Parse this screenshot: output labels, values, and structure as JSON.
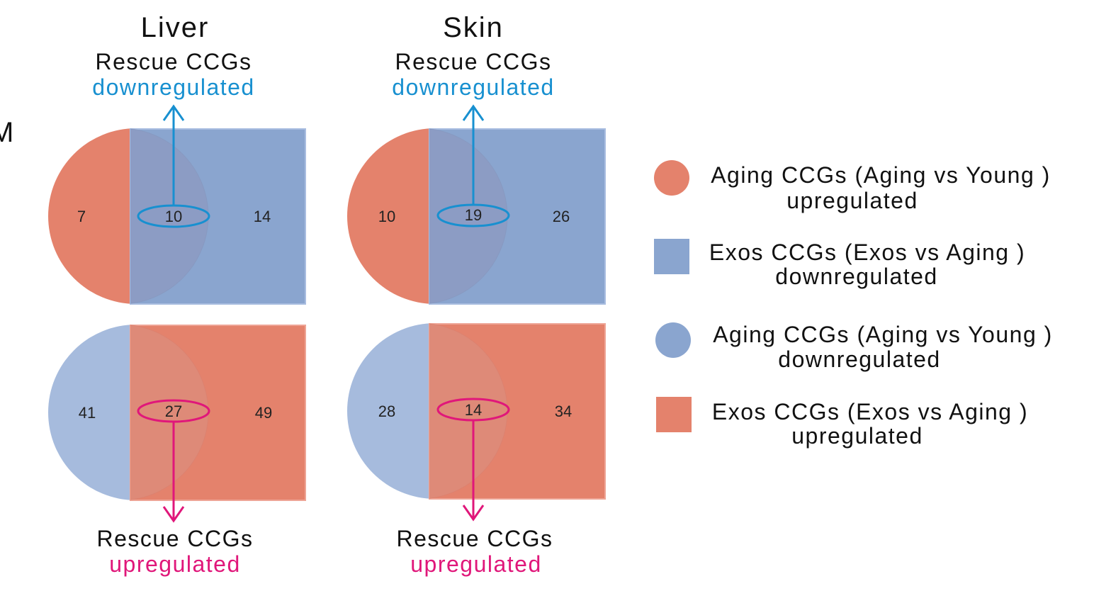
{
  "panel_letter": "M",
  "columns": [
    {
      "title": "Liver",
      "top_caption": {
        "line1": "Rescue CCGs",
        "line2": "downregulated"
      },
      "bottom_caption": {
        "line1": "Rescue CCGs",
        "line2": "upregulated"
      },
      "top_diagram": {
        "left": "7",
        "overlap": "10",
        "right": "14"
      },
      "bottom_diagram": {
        "left": "41",
        "overlap": "27",
        "right": "49"
      }
    },
    {
      "title": "Skin",
      "top_caption": {
        "line1": "Rescue CCGs",
        "line2": "downregulated"
      },
      "bottom_caption": {
        "line1": "Rescue CCGs",
        "line2": "upregulated"
      },
      "top_diagram": {
        "left": "10",
        "overlap": "19",
        "right": "26"
      },
      "bottom_diagram": {
        "left": "28",
        "overlap": "14",
        "right": "34"
      }
    }
  ],
  "legend": [
    {
      "shape": "circle",
      "color": "#e4826c",
      "line1": "Aging CCGs (Aging vs Young )",
      "line2": "upregulated"
    },
    {
      "shape": "square",
      "color": "#8aa5cf",
      "line1": "Exos CCGs (Exos vs Aging )",
      "line2": "downregulated"
    },
    {
      "shape": "circle",
      "color": "#8aa5cf",
      "line1": "Aging CCGs (Aging vs Young )",
      "line2": "downregulated"
    },
    {
      "shape": "square",
      "color": "#e4826c",
      "line1": "Exos CCGs (Exos vs Aging )",
      "line2": "upregulated"
    }
  ],
  "colors": {
    "salmon": "#e4826c",
    "blue": "#8aa5cf",
    "overlap_top": "#8c9cc4",
    "overlap_bottom": "#de8a78",
    "arrow_blue": "#1890d0",
    "arrow_pink": "#e0177a"
  }
}
